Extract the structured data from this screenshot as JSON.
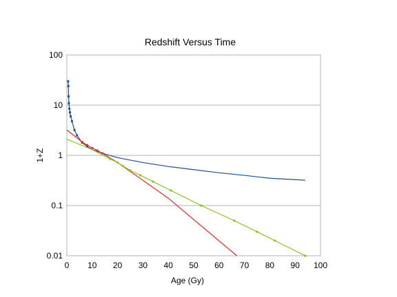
{
  "chart_data": {
    "type": "line",
    "title": "Redshift Versus Time",
    "xlabel": "Age (Gy)",
    "ylabel": "1+Z",
    "xlim": [
      0,
      100
    ],
    "ylim": [
      0.01,
      100
    ],
    "y_scale": "log",
    "grid": "horizontal major gridlines",
    "legend": "none",
    "x_ticks": [
      "0",
      "10",
      "20",
      "30",
      "40",
      "50",
      "60",
      "70",
      "80",
      "90",
      "100"
    ],
    "y_ticks": [
      "0.01",
      "0.1",
      "1",
      "10",
      "100"
    ],
    "series": [
      {
        "color": "#1f4e8c",
        "style": "line-with-markers",
        "x": [
          0.5,
          0.6,
          0.7,
          0.8,
          1.0,
          1.2,
          1.5,
          2.0,
          3.0,
          4.0,
          6.0,
          8.0,
          10.0,
          12.0,
          14.0,
          20.0,
          30.0,
          40.0,
          50.0,
          60.0,
          70.0,
          80.0,
          94.0
        ],
        "y": [
          30,
          24,
          15,
          11,
          8.5,
          7.2,
          6.0,
          4.8,
          3.2,
          2.5,
          1.8,
          1.5,
          1.3,
          1.2,
          1.1,
          0.9,
          0.72,
          0.6,
          0.52,
          0.45,
          0.4,
          0.35,
          0.32
        ],
        "marker_count": 12
      },
      {
        "color": "#d92b2b",
        "style": "line",
        "x": [
          0,
          6,
          8,
          10,
          12,
          14,
          20,
          40,
          67
        ],
        "y": [
          3.2,
          1.85,
          1.6,
          1.4,
          1.25,
          1.1,
          0.72,
          0.14,
          0.01
        ],
        "markers_x": [
          6,
          8,
          10,
          12,
          14
        ],
        "markers_y": [
          1.85,
          1.6,
          1.4,
          1.25,
          1.1
        ]
      },
      {
        "color": "#8cc11f",
        "style": "line-with-markers",
        "x": [
          0,
          10,
          17,
          20,
          22,
          25,
          29,
          34,
          41,
          53,
          66,
          75,
          82,
          94
        ],
        "y": [
          2.1,
          1.3,
          0.85,
          0.72,
          0.62,
          0.5,
          0.4,
          0.3,
          0.2,
          0.1,
          0.05,
          0.03,
          0.02,
          0.01
        ],
        "markers_x": [
          17,
          20,
          22,
          25,
          29,
          34,
          41,
          53,
          66,
          75,
          82,
          94
        ],
        "markers_y": [
          0.85,
          0.72,
          0.62,
          0.5,
          0.4,
          0.3,
          0.2,
          0.1,
          0.05,
          0.03,
          0.02,
          0.01
        ]
      }
    ]
  }
}
